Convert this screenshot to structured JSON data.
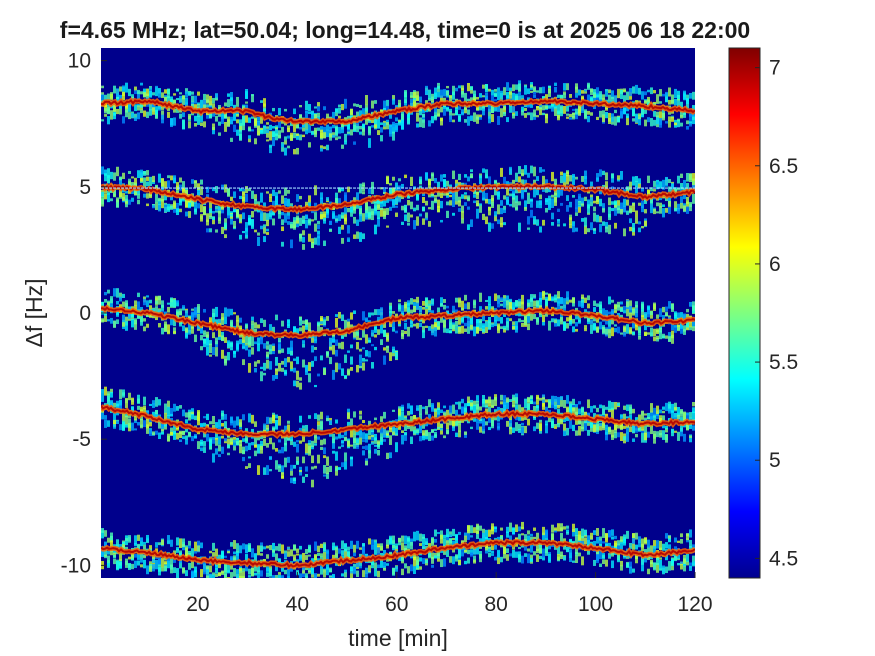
{
  "chart_data": {
    "type": "heatmap",
    "title": "f=4.65 MHz;  lat=50.04; long=14.48, time=0 is at 2025 06 18 22:00",
    "xlabel": "time [min]",
    "ylabel": "Δf [Hz]",
    "xlim": [
      0.5,
      120
    ],
    "ylim": [
      -10.5,
      10.5
    ],
    "x_ticks": [
      20,
      40,
      60,
      80,
      100,
      120
    ],
    "x_tick_labels": [
      "20",
      "40",
      "60",
      "80",
      "100",
      "120"
    ],
    "y_ticks": [
      -10,
      -5,
      0,
      5,
      10
    ],
    "y_tick_labels": [
      "-10",
      "-5",
      "0",
      "5",
      "10"
    ],
    "colorbar": {
      "colormap": "jet",
      "clim": [
        4.4,
        7.1
      ],
      "ticks": [
        4.5,
        5,
        5.5,
        6,
        6.5,
        7
      ],
      "tick_labels": [
        "4.5",
        "5",
        "5.5",
        "6",
        "6.5",
        "7"
      ]
    },
    "horizontal_line": 4.95,
    "traces": [
      {
        "center": 8.2,
        "main": [
          [
            0,
            8.3
          ],
          [
            10,
            8.4
          ],
          [
            20,
            8.0
          ],
          [
            30,
            8.0
          ],
          [
            35,
            7.7
          ],
          [
            40,
            7.6
          ],
          [
            50,
            7.6
          ],
          [
            60,
            8.0
          ],
          [
            70,
            8.3
          ],
          [
            80,
            8.3
          ],
          [
            90,
            8.4
          ],
          [
            100,
            8.3
          ],
          [
            110,
            8.2
          ],
          [
            120,
            8.0
          ]
        ],
        "lower": [
          [
            20,
            7.8
          ],
          [
            30,
            7.3
          ],
          [
            40,
            6.9
          ],
          [
            50,
            7.2
          ],
          [
            60,
            7.7
          ]
        ]
      },
      {
        "center": 5.0,
        "main": [
          [
            0,
            5.0
          ],
          [
            10,
            4.9
          ],
          [
            20,
            4.5
          ],
          [
            30,
            4.2
          ],
          [
            40,
            4.1
          ],
          [
            50,
            4.3
          ],
          [
            60,
            4.7
          ],
          [
            70,
            4.9
          ],
          [
            80,
            5.0
          ],
          [
            90,
            5.0
          ],
          [
            100,
            4.9
          ],
          [
            110,
            4.6
          ],
          [
            120,
            4.8
          ]
        ],
        "lower": [
          [
            20,
            4.0
          ],
          [
            30,
            3.5
          ],
          [
            40,
            3.2
          ],
          [
            50,
            3.5
          ],
          [
            60,
            4.2
          ],
          [
            110,
            3.8
          ]
        ]
      },
      {
        "center": 0.0,
        "main": [
          [
            0,
            0.2
          ],
          [
            10,
            0.0
          ],
          [
            20,
            -0.4
          ],
          [
            30,
            -0.8
          ],
          [
            40,
            -0.9
          ],
          [
            50,
            -0.7
          ],
          [
            60,
            -0.2
          ],
          [
            70,
            -0.1
          ],
          [
            80,
            0.0
          ],
          [
            90,
            0.1
          ],
          [
            100,
            -0.1
          ],
          [
            110,
            -0.4
          ],
          [
            120,
            -0.3
          ]
        ],
        "lower": [
          [
            20,
            -0.9
          ],
          [
            30,
            -1.6
          ],
          [
            40,
            -2.6
          ],
          [
            50,
            -1.9
          ],
          [
            60,
            -1.0
          ]
        ]
      },
      {
        "center": -4.0,
        "main": [
          [
            0,
            -3.7
          ],
          [
            10,
            -4.1
          ],
          [
            20,
            -4.6
          ],
          [
            30,
            -4.8
          ],
          [
            40,
            -4.8
          ],
          [
            50,
            -4.6
          ],
          [
            60,
            -4.4
          ],
          [
            70,
            -4.2
          ],
          [
            80,
            -4.0
          ],
          [
            90,
            -4.0
          ],
          [
            100,
            -4.2
          ],
          [
            110,
            -4.4
          ],
          [
            120,
            -4.3
          ]
        ],
        "lower": [
          [
            20,
            -5.0
          ],
          [
            30,
            -5.5
          ],
          [
            40,
            -6.3
          ],
          [
            50,
            -5.6
          ],
          [
            60,
            -4.9
          ]
        ]
      },
      {
        "center": -9.5,
        "main": [
          [
            0,
            -9.3
          ],
          [
            10,
            -9.5
          ],
          [
            20,
            -9.8
          ],
          [
            30,
            -9.9
          ],
          [
            40,
            -10.0
          ],
          [
            50,
            -9.8
          ],
          [
            60,
            -9.6
          ],
          [
            70,
            -9.3
          ],
          [
            80,
            -9.1
          ],
          [
            90,
            -9.1
          ],
          [
            100,
            -9.3
          ],
          [
            110,
            -9.6
          ],
          [
            120,
            -9.4
          ]
        ],
        "lower": []
      }
    ]
  }
}
